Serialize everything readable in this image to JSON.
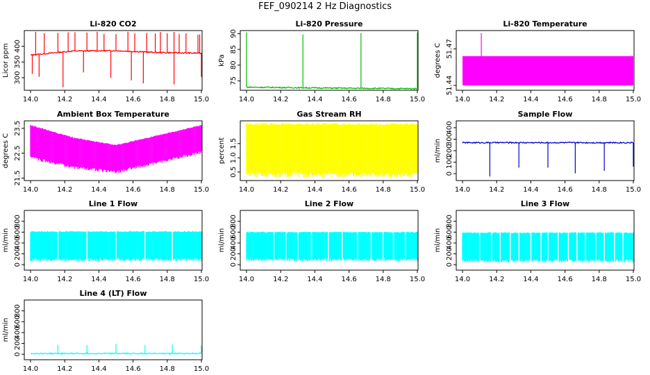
{
  "figure_title": "FEF_090214  2 Hz Diagnostics",
  "colors": {
    "co2": "#ff0000",
    "pressure": "#00bb00",
    "temperature": "#ff00ff",
    "box_temp": "#ff00ff",
    "rh": "#ffff00",
    "sample_flow": "#0000cc",
    "line_flow": "#00ffff"
  },
  "chart_data": [
    {
      "type": "line",
      "title": "Li-820 CO2",
      "ylabel": "Licor ppm",
      "xlim": [
        14.0,
        15.0
      ],
      "xticks": [
        "14.0",
        "14.2",
        "14.4",
        "14.6",
        "14.8",
        "15.0"
      ],
      "ylim": [
        260,
        450
      ],
      "yticks": [
        "300",
        "350",
        "400"
      ],
      "color_key": "co2",
      "series": [
        {
          "baseline": [
            [
              14.0,
              372
            ],
            [
              14.25,
              385
            ],
            [
              14.5,
              386
            ],
            [
              14.75,
              380
            ],
            [
              15.0,
              378
            ]
          ]
        }
      ],
      "spikes_up": [
        14.03,
        14.08,
        14.16,
        14.22,
        14.26,
        14.33,
        14.39,
        14.43,
        14.5,
        14.57,
        14.61,
        14.68,
        14.73,
        14.76,
        14.8,
        14.84,
        14.87,
        14.91,
        14.98,
        14.99
      ],
      "spikes_down": [
        14.01,
        14.05,
        14.19,
        14.31,
        14.47,
        14.59,
        14.66,
        14.84,
        15.0
      ]
    },
    {
      "type": "line",
      "title": "Li-820 Pressure",
      "ylabel": "kPa",
      "xlim": [
        14.0,
        15.0
      ],
      "xticks": [
        "14.0",
        "14.2",
        "14.4",
        "14.6",
        "14.8",
        "15.0"
      ],
      "ylim": [
        72,
        91
      ],
      "yticks": [
        "75",
        "80",
        "85",
        "90"
      ],
      "color_key": "pressure",
      "series": [
        {
          "baseline": [
            [
              14.0,
              73.0
            ],
            [
              14.5,
              72.7
            ],
            [
              15.0,
              72.5
            ]
          ]
        }
      ],
      "spikes_up": [
        14.0,
        14.33,
        14.67,
        15.0
      ]
    },
    {
      "type": "area",
      "title": "Li-820 Temperature",
      "ylabel": "degrees C",
      "xlim": [
        14.0,
        15.0
      ],
      "xticks": [
        "14.0",
        "14.2",
        "14.4",
        "14.6",
        "14.8",
        "15.0"
      ],
      "ylim": [
        51.436,
        51.485
      ],
      "yticks": [
        "51.44",
        "51.47"
      ],
      "color_key": "temperature",
      "band": [
        51.44,
        51.464
      ],
      "spikes_up": [
        14.11
      ]
    },
    {
      "type": "line",
      "title": "Ambient Box Temperature",
      "ylabel": "degrees C",
      "xlim": [
        14.0,
        15.0
      ],
      "xticks": [
        "14.0",
        "14.2",
        "14.4",
        "14.6",
        "14.8",
        "15.0"
      ],
      "ylim": [
        21.4,
        23.8
      ],
      "yticks": [
        "21.5",
        "22.5",
        "23.5"
      ],
      "color_key": "box_temp",
      "series": [
        {
          "band": [
            [
              14.0,
              22.4,
              23.6
            ],
            [
              14.25,
              22.0,
              23.1
            ],
            [
              14.5,
              21.8,
              22.8
            ],
            [
              14.75,
              22.2,
              23.2
            ],
            [
              15.0,
              22.6,
              23.6
            ]
          ]
        }
      ]
    },
    {
      "type": "line",
      "title": "Gas Stream RH",
      "ylabel": "percent",
      "xlim": [
        14.0,
        15.0
      ],
      "xticks": [
        "14.0",
        "14.2",
        "14.4",
        "14.6",
        "14.8",
        "15.0"
      ],
      "ylim": [
        0.2,
        2.3
      ],
      "yticks": [
        "0.5",
        "1.0",
        "1.5"
      ],
      "color_key": "rh",
      "series": [
        {
          "band": [
            [
              14.0,
              0.5,
              2.15
            ],
            [
              15.0,
              0.5,
              2.15
            ]
          ]
        }
      ]
    },
    {
      "type": "line",
      "title": "Sample Flow",
      "ylabel": "ml/min",
      "xlim": [
        14.0,
        15.0
      ],
      "xticks": [
        "14.0",
        "14.2",
        "14.4",
        "14.6",
        "14.8",
        "15.0"
      ],
      "ylim": [
        -60,
        460
      ],
      "yticks": [
        "0",
        "100",
        "200",
        "300",
        "400"
      ],
      "color_key": "sample_flow",
      "series": [
        {
          "baseline": [
            [
              14.0,
              270
            ],
            [
              15.0,
              270
            ]
          ]
        }
      ],
      "spikes_down": [
        14.16,
        14.33,
        14.5,
        14.66,
        14.83,
        15.0
      ]
    },
    {
      "type": "line",
      "title": "Line 1 Flow",
      "ylabel": "ml/min",
      "xlim": [
        14.0,
        15.0
      ],
      "xticks": [
        "14.0",
        "14.2",
        "14.4",
        "14.6",
        "14.8",
        "15.0"
      ],
      "ylim": [
        -100,
        1000
      ],
      "yticks": [
        "0",
        "200",
        "400",
        "600",
        "800"
      ],
      "color_key": "line_flow",
      "series": [
        {
          "band": [
            [
              14.0,
              120,
              600
            ],
            [
              15.0,
              120,
              600
            ]
          ]
        }
      ],
      "gaps": [
        14.16,
        14.33,
        14.5,
        14.67,
        14.83
      ]
    },
    {
      "type": "line",
      "title": "Line 2 Flow",
      "ylabel": "ml/min",
      "xlim": [
        14.0,
        15.0
      ],
      "xticks": [
        "14.0",
        "14.2",
        "14.4",
        "14.6",
        "14.8",
        "15.0"
      ],
      "ylim": [
        -100,
        1000
      ],
      "yticks": [
        "0",
        "200",
        "400",
        "600",
        "800"
      ],
      "color_key": "line_flow",
      "series": [
        {
          "band": [
            [
              14.0,
              120,
              590
            ],
            [
              15.0,
              120,
              590
            ]
          ]
        }
      ],
      "gaps": [
        14.16,
        14.23,
        14.3,
        14.38,
        14.48,
        14.56,
        14.65,
        14.73,
        14.8,
        14.86,
        14.93
      ]
    },
    {
      "type": "line",
      "title": "Line 3 Flow",
      "ylabel": "ml/min",
      "xlim": [
        14.0,
        15.0
      ],
      "xticks": [
        "14.0",
        "14.2",
        "14.4",
        "14.6",
        "14.8",
        "15.0"
      ],
      "ylim": [
        -100,
        1000
      ],
      "yticks": [
        "0",
        "200",
        "400",
        "600",
        "800"
      ],
      "color_key": "line_flow",
      "series": [
        {
          "band": [
            [
              14.0,
              100,
              580
            ],
            [
              15.0,
              100,
              580
            ]
          ]
        }
      ],
      "gaps": [
        14.1,
        14.17,
        14.22,
        14.28,
        14.33,
        14.4,
        14.46,
        14.5,
        14.56,
        14.62,
        14.67,
        14.72,
        14.78,
        14.83,
        14.89,
        14.94
      ]
    },
    {
      "type": "line",
      "title": "Line 4 (LT) Flow",
      "ylabel": "ml/min",
      "xlim": [
        14.0,
        15.0
      ],
      "xticks": [
        "14.0",
        "14.2",
        "14.4",
        "14.6",
        "14.8",
        "15.0"
      ],
      "ylim": [
        -100,
        1000
      ],
      "yticks": [
        "0",
        "200",
        "400",
        "600",
        "800"
      ],
      "color_key": "line_flow",
      "series": [
        {
          "baseline": [
            [
              14.0,
              15
            ],
            [
              15.0,
              15
            ]
          ]
        }
      ],
      "spikes_up": [
        14.16,
        14.33,
        14.5,
        14.67,
        14.83,
        15.0
      ]
    }
  ]
}
